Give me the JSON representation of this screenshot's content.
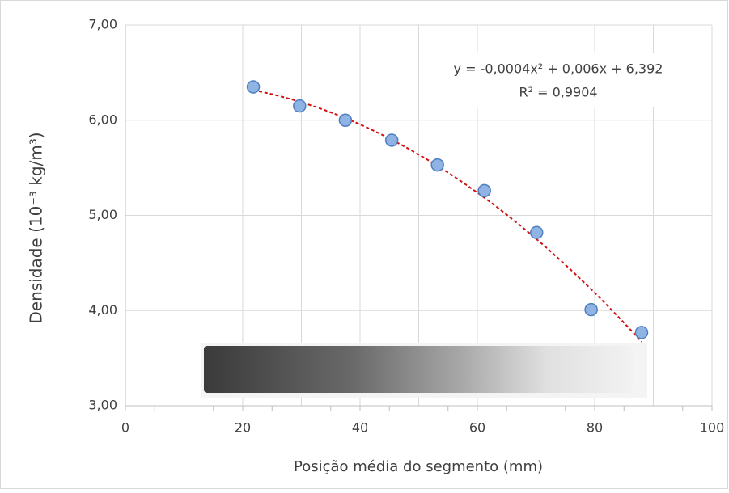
{
  "chart_data": {
    "type": "scatter",
    "x_label": "Posição média do segmento (mm)",
    "y_label": "Densidade (10⁻³ kg/m³)",
    "trendline_equation": "y = -0,0004x² + 0,006x + 6,392",
    "trendline_r2": "R² = 0,9904",
    "trendline_color": "#d01010",
    "series": [
      {
        "color": "#8fb4e3",
        "x": [
          21.8,
          29.7,
          37.5,
          45.4,
          53.2,
          61.2,
          70.1,
          79.4,
          88.0
        ],
        "values": [
          6.35,
          6.15,
          6.0,
          5.79,
          5.53,
          5.26,
          4.82,
          4.01,
          3.77
        ]
      }
    ],
    "xlim": [
      0,
      100
    ],
    "xticks": [
      0,
      20,
      40,
      60,
      80,
      100
    ],
    "ylim": [
      3,
      7
    ],
    "yticks": [
      {
        "value": 3,
        "label": "3,00"
      },
      {
        "value": 4,
        "label": "4,00"
      },
      {
        "value": 5,
        "label": "5,00"
      },
      {
        "value": 6,
        "label": "6,00"
      },
      {
        "value": 7,
        "label": "7,00"
      }
    ],
    "grid": true
  }
}
